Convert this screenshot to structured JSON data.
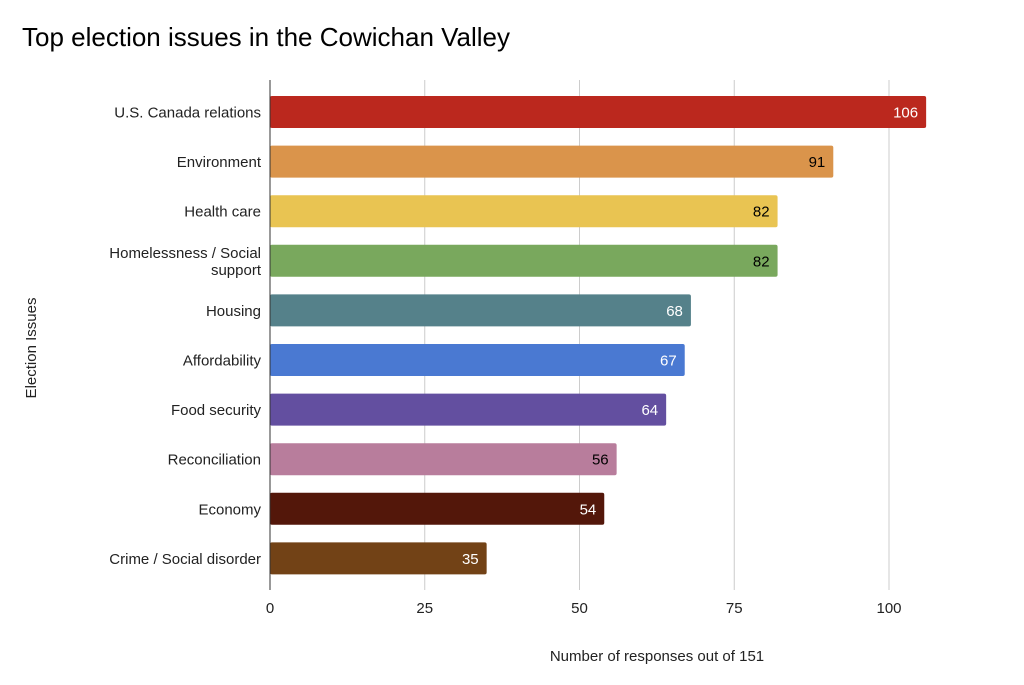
{
  "chart_data": {
    "type": "bar",
    "orientation": "horizontal",
    "title": "Top election issues in the Cowichan Valley",
    "xlabel": "Number of responses out of 151",
    "ylabel": "Election Issues",
    "xlim": [
      0,
      106
    ],
    "xticks": [
      0,
      25,
      50,
      75,
      100
    ],
    "grid": true,
    "categories": [
      "U.S. Canada relations",
      "Environment",
      "Health care",
      "Homelessness / Social support",
      "Housing",
      "Affordability",
      "Food security",
      "Reconciliation",
      "Economy",
      "Crime / Social disorder"
    ],
    "values": [
      106,
      91,
      82,
      82,
      68,
      67,
      64,
      56,
      54,
      35
    ],
    "colors": [
      "#BB281E",
      "#DA944B",
      "#E9C452",
      "#79A85D",
      "#55818A",
      "#4A79D2",
      "#634FA0",
      "#B87D9C",
      "#53170A",
      "#724216"
    ],
    "label_colors": [
      "#ffffff",
      "#000000",
      "#000000",
      "#000000",
      "#ffffff",
      "#ffffff",
      "#ffffff",
      "#000000",
      "#ffffff",
      "#ffffff"
    ]
  }
}
